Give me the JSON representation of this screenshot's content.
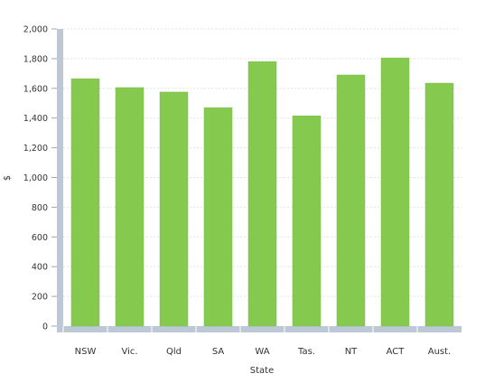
{
  "chart_data": {
    "type": "bar",
    "categories": [
      "NSW",
      "Vic.",
      "Qld",
      "SA",
      "WA",
      "Tas.",
      "NT",
      "ACT",
      "Aust."
    ],
    "values": [
      1665,
      1605,
      1575,
      1470,
      1780,
      1415,
      1690,
      1805,
      1635
    ],
    "ylabel": "$",
    "xlabel": "State",
    "ylim": [
      0,
      2000
    ],
    "yticks": [
      "0",
      "200",
      "400",
      "600",
      "800",
      "1,000",
      "1,200",
      "1,400",
      "1,600",
      "1,800",
      "2,000"
    ],
    "grid": true,
    "legend": "none",
    "colors": {
      "bar": "#86c94f",
      "bar_edge": "#7fbf49",
      "axis_band": "#bcc8d6",
      "grid": "#e3e3e3"
    }
  }
}
